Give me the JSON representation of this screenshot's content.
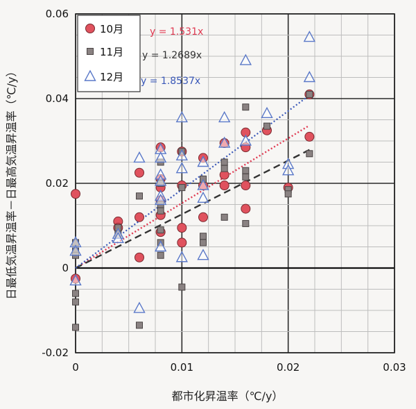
{
  "chart_data": {
    "type": "scatter",
    "xlabel": "都市化昇温率（℃/y）",
    "ylabel": "日最低気温昇温率－日最高気温昇温率（℃/y）",
    "xlim": [
      0,
      0.03
    ],
    "ylim": [
      -0.02,
      0.06
    ],
    "xticks": [
      0,
      0.01,
      0.02,
      0.03
    ],
    "yticks": [
      -0.02,
      0,
      0.02,
      0.04,
      0.06
    ],
    "xtick_labels": [
      "0",
      "0.01",
      "0.02",
      "0.03"
    ],
    "ytick_labels": [
      "-0.02",
      "0",
      "0.02",
      "0.04",
      "0.06"
    ],
    "grid": true,
    "legend_position": "top-left",
    "series": [
      {
        "name": "10月",
        "marker": "circle",
        "color": "#e0525e",
        "trend_label": "y = 1.531x",
        "trend_slope": 1.531,
        "trend_color": "#e03a52",
        "trend_xmax": 0.022,
        "points": [
          [
            0,
            0.0175
          ],
          [
            0,
            -0.0025
          ],
          [
            0.004,
            0.011
          ],
          [
            0.004,
            0.0095
          ],
          [
            0.006,
            0.0225
          ],
          [
            0.006,
            0.012
          ],
          [
            0.006,
            0.0025
          ],
          [
            0.008,
            0.0285
          ],
          [
            0.008,
            0.021
          ],
          [
            0.008,
            0.019
          ],
          [
            0.008,
            0.016
          ],
          [
            0.008,
            0.0125
          ],
          [
            0.008,
            0.0085
          ],
          [
            0.01,
            0.0275
          ],
          [
            0.01,
            0.0195
          ],
          [
            0.01,
            0.0095
          ],
          [
            0.01,
            0.006
          ],
          [
            0.012,
            0.026
          ],
          [
            0.012,
            0.0195
          ],
          [
            0.012,
            0.012
          ],
          [
            0.014,
            0.0295
          ],
          [
            0.014,
            0.022
          ],
          [
            0.014,
            0.0195
          ],
          [
            0.016,
            0.032
          ],
          [
            0.016,
            0.0285
          ],
          [
            0.016,
            0.0195
          ],
          [
            0.016,
            0.014
          ],
          [
            0.018,
            0.0325
          ],
          [
            0.02,
            0.019
          ],
          [
            0.022,
            0.041
          ],
          [
            0.022,
            0.031
          ]
        ]
      },
      {
        "name": "11月",
        "marker": "square",
        "color": "#8a8282",
        "trend_label": "y = 1.2689x",
        "trend_slope": 1.2689,
        "trend_color": "#333333",
        "trend_xmax": 0.022,
        "points": [
          [
            0,
            0.006
          ],
          [
            0,
            0.004
          ],
          [
            0,
            0.003
          ],
          [
            0,
            -0.006
          ],
          [
            0,
            -0.008
          ],
          [
            0,
            -0.014
          ],
          [
            0.004,
            0.0095
          ],
          [
            0.004,
            0.008
          ],
          [
            0.006,
            0.017
          ],
          [
            0.006,
            -0.0135
          ],
          [
            0.008,
            0.025
          ],
          [
            0.008,
            0.02
          ],
          [
            0.008,
            0.015
          ],
          [
            0.008,
            0.0135
          ],
          [
            0.008,
            0.009
          ],
          [
            0.008,
            0.006
          ],
          [
            0.008,
            0.003
          ],
          [
            0.01,
            0.0275
          ],
          [
            0.01,
            0.019
          ],
          [
            0.01,
            -0.0045
          ],
          [
            0.012,
            0.021
          ],
          [
            0.012,
            0.0075
          ],
          [
            0.012,
            0.006
          ],
          [
            0.014,
            0.025
          ],
          [
            0.014,
            0.0235
          ],
          [
            0.014,
            0.012
          ],
          [
            0.016,
            0.038
          ],
          [
            0.016,
            0.023
          ],
          [
            0.016,
            0.0215
          ],
          [
            0.016,
            0.0105
          ],
          [
            0.018,
            0.0335
          ],
          [
            0.02,
            0.0185
          ],
          [
            0.02,
            0.0175
          ],
          [
            0.022,
            0.041
          ],
          [
            0.022,
            0.027
          ]
        ]
      },
      {
        "name": "12月",
        "marker": "triangle",
        "color": "#5a78c8",
        "trend_label": "y = 1.8537x",
        "trend_slope": 1.8537,
        "trend_color": "#3a58b8",
        "trend_xmax": 0.022,
        "points": [
          [
            0,
            0.006
          ],
          [
            0,
            0.004
          ],
          [
            0,
            -0.003
          ],
          [
            0.004,
            0.008
          ],
          [
            0.004,
            0.007
          ],
          [
            0.006,
            0.026
          ],
          [
            0.006,
            -0.0095
          ],
          [
            0.008,
            0.028
          ],
          [
            0.008,
            0.026
          ],
          [
            0.008,
            0.022
          ],
          [
            0.008,
            0.0205
          ],
          [
            0.008,
            0.017
          ],
          [
            0.008,
            0.016
          ],
          [
            0.008,
            0.005
          ],
          [
            0.01,
            0.0355
          ],
          [
            0.01,
            0.0265
          ],
          [
            0.01,
            0.0235
          ],
          [
            0.01,
            0.0025
          ],
          [
            0.012,
            0.025
          ],
          [
            0.012,
            0.0195
          ],
          [
            0.012,
            0.0165
          ],
          [
            0.012,
            0.003
          ],
          [
            0.014,
            0.0355
          ],
          [
            0.014,
            0.0295
          ],
          [
            0.016,
            0.049
          ],
          [
            0.016,
            0.03
          ],
          [
            0.018,
            0.0365
          ],
          [
            0.02,
            0.0245
          ],
          [
            0.02,
            0.023
          ],
          [
            0.022,
            0.0545
          ],
          [
            0.022,
            0.045
          ]
        ]
      }
    ]
  }
}
